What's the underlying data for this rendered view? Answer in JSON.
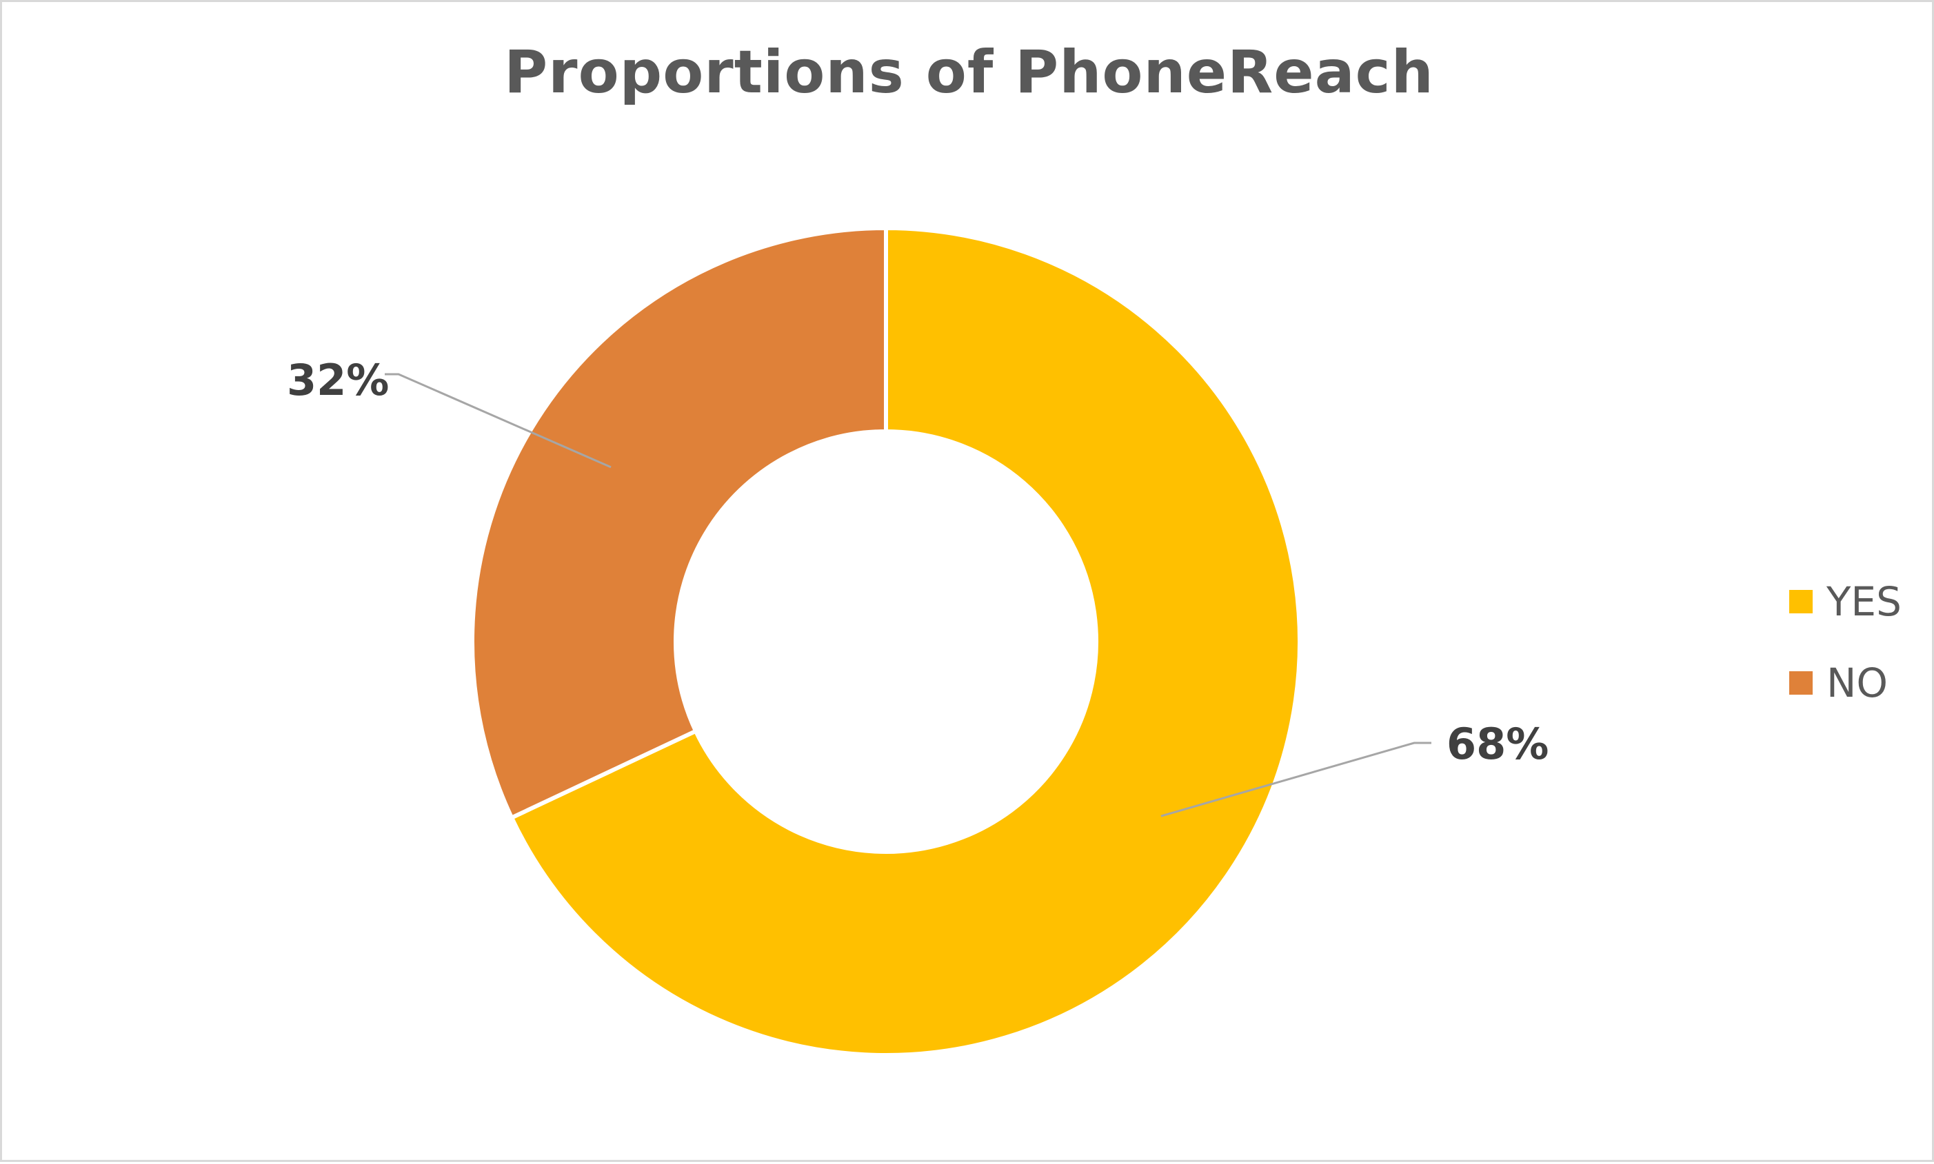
{
  "chart_data": {
    "type": "pie",
    "variant": "doughnut",
    "title": "Proportions of PhoneReach",
    "categories": [
      "YES",
      "NO"
    ],
    "values": [
      68,
      32
    ],
    "data_labels": [
      "68%",
      "32%"
    ],
    "colors": [
      "#FFC000",
      "#DF8139"
    ],
    "legend": {
      "position": "right",
      "entries": [
        "YES",
        "NO"
      ]
    }
  }
}
